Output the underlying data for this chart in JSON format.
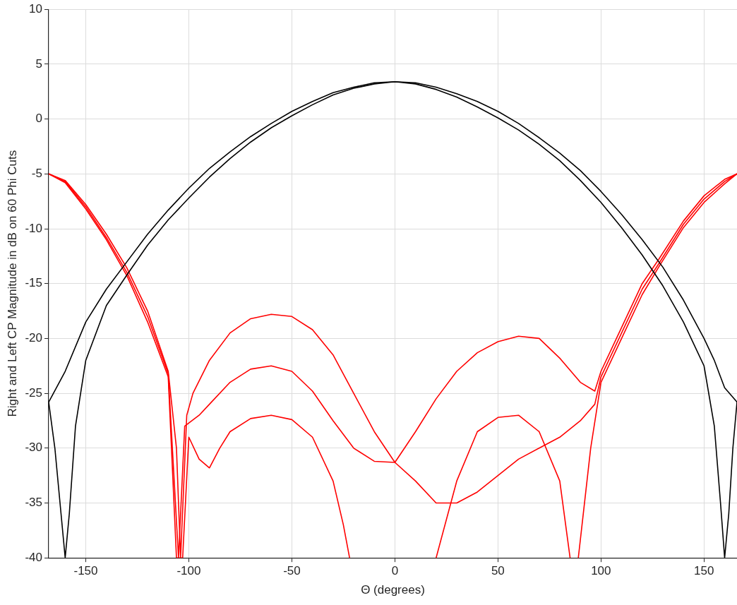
{
  "chart_data": {
    "type": "line",
    "xlabel": "Θ (degrees)",
    "ylabel": "Right and Left CP Magnitude in dB on 60 Phi Cuts",
    "xlim": [
      -168,
      166
    ],
    "ylim": [
      -40,
      10
    ],
    "xticks": [
      -150,
      -100,
      -50,
      0,
      50,
      100,
      150
    ],
    "yticks": [
      -40,
      -35,
      -30,
      -25,
      -20,
      -15,
      -10,
      -5,
      0,
      5,
      10
    ],
    "grid": true,
    "legend": false,
    "marker": "none",
    "series": [
      {
        "color": "#000000",
        "x": [
          -168,
          -160,
          -150,
          -140,
          -130,
          -120,
          -110,
          -100,
          -90,
          -80,
          -70,
          -60,
          -50,
          -40,
          -30,
          -20,
          -10,
          0,
          10,
          20,
          30,
          40,
          50,
          60,
          70,
          80,
          90,
          100,
          110,
          120,
          130,
          140,
          150,
          155,
          160,
          166
        ],
        "values": [
          -25.8,
          -23,
          -18.5,
          -15.5,
          -13,
          -10.5,
          -8.3,
          -6.3,
          -4.5,
          -3,
          -1.6,
          -0.4,
          0.7,
          1.6,
          2.4,
          2.9,
          3.3,
          3.4,
          3.3,
          2.9,
          2.3,
          1.6,
          0.7,
          -0.4,
          -1.7,
          -3.1,
          -4.7,
          -6.6,
          -8.7,
          -11,
          -13.5,
          -16.5,
          -20,
          -22,
          -24.5,
          -25.8
        ]
      },
      {
        "color": "#000000",
        "x": [
          -168,
          -165,
          -162,
          -160,
          -158,
          -155,
          -150,
          -140,
          -130,
          -120,
          -110,
          -100,
          -90,
          -80,
          -70,
          -60,
          -50,
          -40,
          -30,
          -20,
          -10,
          0,
          10,
          20,
          30,
          40,
          50,
          60,
          70,
          80,
          90,
          100,
          110,
          120,
          130,
          140,
          150,
          155,
          158,
          160,
          162,
          164,
          166
        ],
        "values": [
          -25.8,
          -30,
          -36,
          -40,
          -36,
          -28,
          -22,
          -17,
          -14.2,
          -11.5,
          -9.2,
          -7.2,
          -5.3,
          -3.6,
          -2.1,
          -0.8,
          0.3,
          1.3,
          2.2,
          2.8,
          3.2,
          3.4,
          3.2,
          2.7,
          2,
          1.1,
          0.1,
          -1,
          -2.3,
          -3.8,
          -5.6,
          -7.6,
          -9.9,
          -12.4,
          -15.2,
          -18.5,
          -22.5,
          -28,
          -35,
          -40,
          -36,
          -30,
          -25.8
        ]
      },
      {
        "color": "#ff0000",
        "x": [
          -168,
          -160,
          -150,
          -140,
          -130,
          -120,
          -110,
          -106,
          -104,
          -101,
          -98,
          -90,
          -80,
          -70,
          -60,
          -50,
          -40,
          -30,
          -20,
          -10,
          0,
          10,
          20,
          30,
          40,
          50,
          60,
          70,
          80,
          90,
          97,
          100,
          110,
          120,
          128,
          140,
          150,
          160,
          166
        ],
        "values": [
          -5,
          -5.6,
          -7.8,
          -10.5,
          -13.6,
          -17.5,
          -23,
          -30,
          -40,
          -27,
          -25,
          -22,
          -19.5,
          -18.2,
          -17.8,
          -18,
          -19.2,
          -21.5,
          -25,
          -28.5,
          -31.3,
          -28.5,
          -25.5,
          -23,
          -21.3,
          -20.3,
          -19.8,
          -20,
          -21.8,
          -24,
          -24.8,
          -23,
          -19,
          -15,
          -12.8,
          -9.3,
          -7,
          -5.5,
          -5
        ]
      },
      {
        "color": "#ff0000",
        "x": [
          -168,
          -160,
          -150,
          -140,
          -130,
          -120,
          -110,
          -105,
          -102,
          -95,
          -90,
          -80,
          -70,
          -60,
          -50,
          -40,
          -30,
          -20,
          -10,
          0,
          10,
          20,
          30,
          40,
          50,
          60,
          70,
          80,
          90,
          97,
          100,
          110,
          120,
          128,
          140,
          150,
          160,
          166
        ],
        "values": [
          -5,
          -5.7,
          -8,
          -10.8,
          -14,
          -18,
          -23.2,
          -40,
          -28,
          -27,
          -26,
          -24,
          -22.8,
          -22.5,
          -23,
          -24.8,
          -27.5,
          -30,
          -31.2,
          -31.3,
          -33,
          -35,
          -35,
          -34,
          -32.5,
          -31,
          -30,
          -29,
          -27.5,
          -26,
          -23.5,
          -19.5,
          -15.5,
          -13.2,
          -9.6,
          -7.3,
          -5.7,
          -5
        ]
      },
      {
        "color": "#ff0000",
        "x": [
          -168,
          -160,
          -150,
          -140,
          -130,
          -120,
          -110,
          -106,
          -103,
          -100,
          -95,
          -90,
          -85,
          -80,
          -70,
          -60,
          -50,
          -40,
          -30,
          -25,
          -22,
          0,
          20,
          30,
          40,
          50,
          60,
          70,
          80,
          85,
          88,
          89,
          95,
          100,
          110,
          120,
          128,
          140,
          150,
          160,
          166
        ],
        "values": [
          -5,
          -5.8,
          -8.2,
          -11,
          -14.3,
          -18.5,
          -23.5,
          -40,
          -40,
          -29,
          -31,
          -31.8,
          -30,
          -28.5,
          -27.3,
          -27,
          -27.4,
          -29,
          -33,
          -37,
          -40,
          null,
          -40,
          -33,
          -28.5,
          -27.2,
          -27,
          -28.5,
          -33,
          -40,
          null,
          -40,
          -30,
          -24,
          -20,
          -16,
          -13.5,
          -9.9,
          -7.6,
          -5.9,
          -5
        ]
      }
    ]
  }
}
